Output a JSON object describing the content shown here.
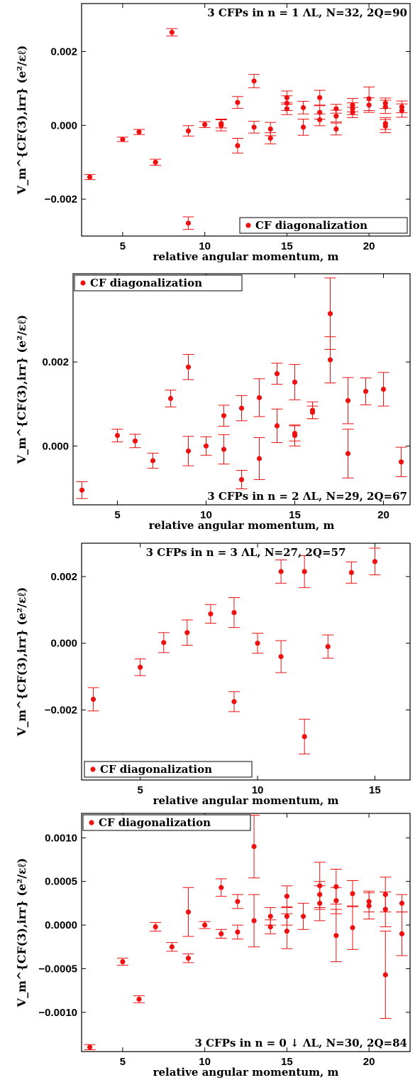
{
  "colors": {
    "series": "#ee1111",
    "axis": "#000000"
  },
  "chart_data": [
    {
      "type": "scatter",
      "title": "3 CFPs in n = 1 ΛL, N=32, 2Q=90",
      "title_position": "top-right",
      "legend": "CF diagonalization",
      "legend_position": "bottom-right",
      "xlabel": "relative angular momentum, m",
      "ylabel": "V_m^{CF(3),irr} (e²/εℓ)",
      "xlim": [
        2.5,
        22.5
      ],
      "ylim": [
        -0.003,
        0.0033
      ],
      "xticks": [
        5,
        10,
        15,
        20
      ],
      "yticks": [
        -0.002,
        0.0,
        0.002
      ],
      "ytick_labels": [
        "−0.002",
        "0.000",
        "0.002"
      ],
      "points": [
        {
          "x": 3,
          "y": -0.0014,
          "err": 7e-05
        },
        {
          "x": 5,
          "y": -0.00038,
          "err": 6e-05
        },
        {
          "x": 6,
          "y": -0.00018,
          "err": 7e-05
        },
        {
          "x": 7,
          "y": -0.001,
          "err": 8e-05
        },
        {
          "x": 8,
          "y": 0.00252,
          "err": 0.0001
        },
        {
          "x": 9,
          "y": -0.00265,
          "err": 0.00017
        },
        {
          "x": 9,
          "y": -0.00015,
          "err": 0.00014
        },
        {
          "x": 10,
          "y": 2e-05,
          "err": 8e-05
        },
        {
          "x": 11,
          "y": 5e-05,
          "err": 0.00012
        },
        {
          "x": 11,
          "y": 0.0,
          "err": 0.00015
        },
        {
          "x": 12,
          "y": 0.00062,
          "err": 0.00016
        },
        {
          "x": 12,
          "y": -0.00055,
          "err": 0.0002
        },
        {
          "x": 13,
          "y": 0.0012,
          "err": 0.00018
        },
        {
          "x": 13,
          "y": -5e-05,
          "err": 0.00016
        },
        {
          "x": 14,
          "y": -0.0001,
          "err": 0.00018
        },
        {
          "x": 14,
          "y": -0.00035,
          "err": 0.00015
        },
        {
          "x": 15,
          "y": 0.00075,
          "err": 0.00018
        },
        {
          "x": 15,
          "y": 0.0006,
          "err": 0.0002
        },
        {
          "x": 15,
          "y": 0.00045,
          "err": 0.00016
        },
        {
          "x": 16,
          "y": 0.00048,
          "err": 0.00017
        },
        {
          "x": 16,
          "y": -5e-05,
          "err": 0.00022
        },
        {
          "x": 17,
          "y": 0.00075,
          "err": 0.0002
        },
        {
          "x": 17,
          "y": 0.00035,
          "err": 0.00018
        },
        {
          "x": 17,
          "y": 0.00015,
          "err": 0.00016
        },
        {
          "x": 18,
          "y": 0.00045,
          "err": 0.00012
        },
        {
          "x": 18,
          "y": 0.00025,
          "err": 0.00016
        },
        {
          "x": 18,
          "y": -0.0001,
          "err": 0.00016
        },
        {
          "x": 19,
          "y": 0.00055,
          "err": 0.00018
        },
        {
          "x": 19,
          "y": 0.00045,
          "err": 0.00016
        },
        {
          "x": 19,
          "y": 0.00035,
          "err": 0.00014
        },
        {
          "x": 20,
          "y": 0.00072,
          "err": 0.00032
        },
        {
          "x": 20,
          "y": 0.00055,
          "err": 0.0002
        },
        {
          "x": 21,
          "y": 0.0006,
          "err": 0.00014
        },
        {
          "x": 21,
          "y": 0.0005,
          "err": 0.00018
        },
        {
          "x": 21,
          "y": 5e-05,
          "err": 0.00016
        },
        {
          "x": 21,
          "y": -2e-05,
          "err": 0.00018
        },
        {
          "x": 22,
          "y": 0.0005,
          "err": 0.00016
        },
        {
          "x": 22,
          "y": 0.0004,
          "err": 0.00018
        }
      ]
    },
    {
      "type": "scatter",
      "title": "3 CFPs in n = 2 ΛL, N=29, 2Q=67",
      "title_position": "bottom-right",
      "legend": "CF diagonalization",
      "legend_position": "top-left",
      "xlabel": "relative angular momentum, m",
      "ylabel": "V_m^{CF(3),irr} (e²/εℓ)",
      "xlim": [
        2.5,
        21.5
      ],
      "ylim": [
        -0.0014,
        0.0041
      ],
      "xticks": [
        5,
        10,
        15,
        20
      ],
      "yticks": [
        0.0,
        0.002
      ],
      "ytick_labels": [
        "0.000",
        "0.002"
      ],
      "points": [
        {
          "x": 3,
          "y": -0.00105,
          "err": 0.0002
        },
        {
          "x": 5,
          "y": 0.00025,
          "err": 0.00015
        },
        {
          "x": 6,
          "y": 0.00012,
          "err": 0.00016
        },
        {
          "x": 7,
          "y": -0.00035,
          "err": 0.00018
        },
        {
          "x": 8,
          "y": 0.00113,
          "err": 0.0002
        },
        {
          "x": 9,
          "y": 0.00188,
          "err": 0.0003
        },
        {
          "x": 9,
          "y": -0.00012,
          "err": 0.00035
        },
        {
          "x": 10,
          "y": 0.0,
          "err": 0.00022
        },
        {
          "x": 11,
          "y": 0.00072,
          "err": 0.00025
        },
        {
          "x": 11,
          "y": -8e-05,
          "err": 0.00035
        },
        {
          "x": 12,
          "y": 0.0009,
          "err": 0.0003
        },
        {
          "x": 12,
          "y": -0.0008,
          "err": 0.00022
        },
        {
          "x": 13,
          "y": 0.00115,
          "err": 0.00045
        },
        {
          "x": 13,
          "y": -0.0003,
          "err": 0.0005
        },
        {
          "x": 14,
          "y": 0.00172,
          "err": 0.00025
        },
        {
          "x": 14,
          "y": 0.00048,
          "err": 0.0004
        },
        {
          "x": 15,
          "y": 0.00152,
          "err": 0.00042
        },
        {
          "x": 15,
          "y": 0.0003,
          "err": 0.00018
        },
        {
          "x": 15,
          "y": 0.00025,
          "err": 0.00025
        },
        {
          "x": 16,
          "y": 0.0008,
          "err": 0.00015
        },
        {
          "x": 16,
          "y": 0.00085,
          "err": 0.0002
        },
        {
          "x": 17,
          "y": 0.00315,
          "err": 0.00085
        },
        {
          "x": 17,
          "y": 0.00205,
          "err": 0.00055
        },
        {
          "x": 18,
          "y": 0.00108,
          "err": 0.00055
        },
        {
          "x": 18,
          "y": -0.00018,
          "err": 0.00058
        },
        {
          "x": 19,
          "y": 0.0013,
          "err": 0.00032
        },
        {
          "x": 20,
          "y": 0.00135,
          "err": 0.0004
        },
        {
          "x": 21,
          "y": -0.00038,
          "err": 0.00035
        }
      ]
    },
    {
      "type": "scatter",
      "title": "3 CFPs in n = 3 ΛL, N=27, 2Q=57",
      "title_position": "top",
      "legend": "CF diagonalization",
      "legend_position": "bottom-left",
      "xlabel": "relative angular momentum, m",
      "ylabel": "V_m^{CF(3),irr} (e²/εℓ)",
      "xlim": [
        2.5,
        16.5
      ],
      "ylim": [
        -0.0041,
        0.003
      ],
      "xticks": [
        5,
        10,
        15
      ],
      "yticks": [
        -0.002,
        0.0,
        0.002
      ],
      "ytick_labels": [
        "−0.002",
        "0.000",
        "0.002"
      ],
      "points": [
        {
          "x": 3,
          "y": -0.00168,
          "err": 0.00035
        },
        {
          "x": 5,
          "y": -0.00072,
          "err": 0.00025
        },
        {
          "x": 6,
          "y": 2e-05,
          "err": 0.0003
        },
        {
          "x": 7,
          "y": 0.00032,
          "err": 0.00038
        },
        {
          "x": 8,
          "y": 0.00088,
          "err": 0.00028
        },
        {
          "x": 9,
          "y": 0.00092,
          "err": 0.00045
        },
        {
          "x": 9,
          "y": -0.00175,
          "err": 0.0003
        },
        {
          "x": 10,
          "y": 0.0,
          "err": 0.0003
        },
        {
          "x": 11,
          "y": 0.00215,
          "err": 0.00035
        },
        {
          "x": 11,
          "y": -0.0004,
          "err": 0.00048
        },
        {
          "x": 12,
          "y": 0.00215,
          "err": 0.00048
        },
        {
          "x": 12,
          "y": -0.0028,
          "err": 0.00052
        },
        {
          "x": 13,
          "y": -0.0001,
          "err": 0.00035
        },
        {
          "x": 14,
          "y": 0.00212,
          "err": 0.00032
        },
        {
          "x": 15,
          "y": 0.00245,
          "err": 0.0004
        }
      ]
    },
    {
      "type": "scatter",
      "title": "3 CFPs in n = 0 ↓ ΛL, N=30, 2Q=84",
      "title_position": "bottom-right",
      "legend": "CF diagonalization",
      "legend_position": "top-left",
      "xlabel": "relative angular momentum, m",
      "ylabel": "V_m^{CF(3),irr} (e²/εℓ)",
      "xlim": [
        2.5,
        22.5
      ],
      "ylim": [
        -0.00145,
        0.00128
      ],
      "xticks": [
        5,
        10,
        15,
        20
      ],
      "yticks": [
        -0.001,
        -0.0005,
        0.0,
        0.0005,
        0.001
      ],
      "ytick_labels": [
        "−0.0010",
        "−0.0005",
        "0.0000",
        "0.0005",
        "0.0010"
      ],
      "points": [
        {
          "x": 3,
          "y": -0.0014,
          "err": 3e-05
        },
        {
          "x": 5,
          "y": -0.00042,
          "err": 4e-05
        },
        {
          "x": 6,
          "y": -0.00085,
          "err": 4e-05
        },
        {
          "x": 7,
          "y": -2e-05,
          "err": 5e-05
        },
        {
          "x": 8,
          "y": -0.00025,
          "err": 5e-05
        },
        {
          "x": 9,
          "y": 0.00015,
          "err": 0.00028
        },
        {
          "x": 9,
          "y": -0.00038,
          "err": 5e-05
        },
        {
          "x": 10,
          "y": 0.0,
          "err": 4e-05
        },
        {
          "x": 11,
          "y": 0.00043,
          "err": 0.0001
        },
        {
          "x": 11,
          "y": -0.0001,
          "err": 5e-05
        },
        {
          "x": 12,
          "y": 0.00027,
          "err": 8e-05
        },
        {
          "x": 12,
          "y": -8e-05,
          "err": 8e-05
        },
        {
          "x": 13,
          "y": 0.0009,
          "err": 0.00036
        },
        {
          "x": 13,
          "y": 5e-05,
          "err": 0.0003
        },
        {
          "x": 14,
          "y": 0.0001,
          "err": 0.0001
        },
        {
          "x": 14,
          "y": -2e-05,
          "err": 8e-05
        },
        {
          "x": 15,
          "y": 0.00033,
          "err": 0.00012
        },
        {
          "x": 15,
          "y": 0.0001,
          "err": 0.0001
        },
        {
          "x": 15,
          "y": -7e-05,
          "err": 0.0002
        },
        {
          "x": 16,
          "y": 0.0001,
          "err": 0.00015
        },
        {
          "x": 17,
          "y": 0.00045,
          "err": 0.00027
        },
        {
          "x": 17,
          "y": 0.00035,
          "err": 0.00015
        },
        {
          "x": 17,
          "y": 0.00025,
          "err": 0.0002
        },
        {
          "x": 18,
          "y": 0.00044,
          "err": 0.0002
        },
        {
          "x": 18,
          "y": -0.00012,
          "err": 0.0003
        },
        {
          "x": 18,
          "y": 0.00028,
          "err": 0.00015
        },
        {
          "x": 19,
          "y": 0.00036,
          "err": 0.00015
        },
        {
          "x": 19,
          "y": -3e-05,
          "err": 0.00025
        },
        {
          "x": 20,
          "y": 0.00027,
          "err": 0.00012
        },
        {
          "x": 20,
          "y": 0.00022,
          "err": 0.00015
        },
        {
          "x": 21,
          "y": 0.00035,
          "err": 0.0002
        },
        {
          "x": 21,
          "y": 0.00018,
          "err": 0.0002
        },
        {
          "x": 21,
          "y": -0.00057,
          "err": 0.0005
        },
        {
          "x": 22,
          "y": 0.00025,
          "err": 0.0001
        },
        {
          "x": 22,
          "y": -0.0001,
          "err": 0.00025
        }
      ]
    }
  ]
}
